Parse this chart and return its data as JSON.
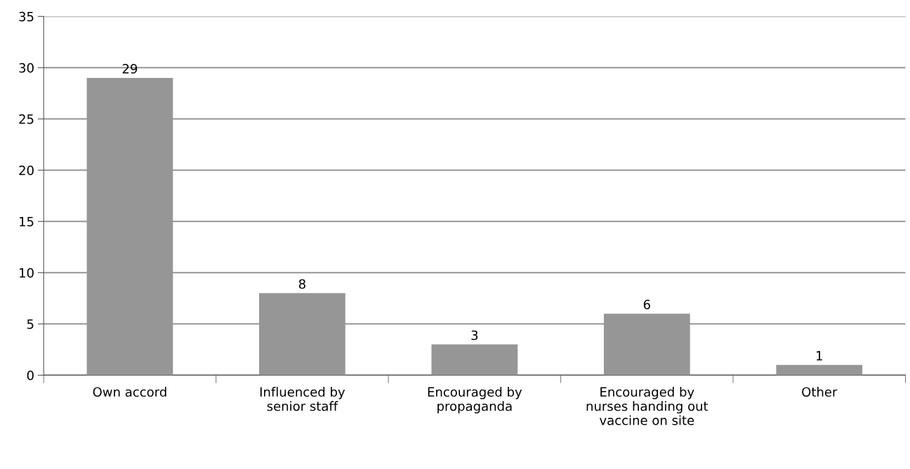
{
  "chart_data": {
    "type": "bar",
    "categories": [
      "Own accord",
      "Influenced by\nsenior staff",
      "Encouraged by\npropaganda",
      "Encouraged by\nnurses handing out\nvaccine on site",
      "Other"
    ],
    "values": [
      29,
      8,
      3,
      6,
      1
    ],
    "color": "#969696",
    "ylim": [
      0,
      35
    ],
    "yticks": [
      0,
      5,
      10,
      15,
      20,
      25,
      30,
      35
    ],
    "grid": "y",
    "data_labels": true
  }
}
